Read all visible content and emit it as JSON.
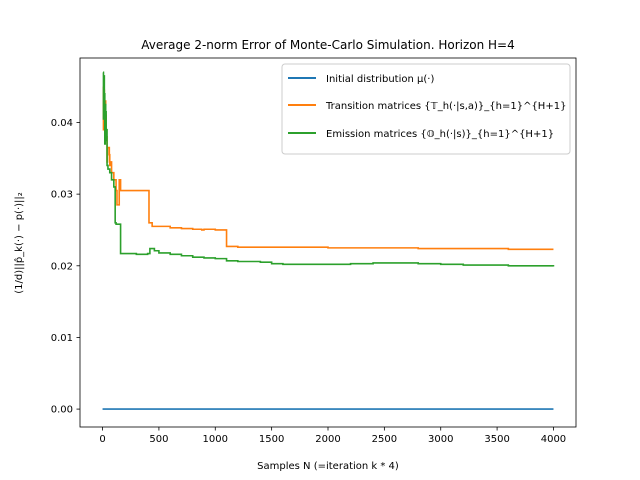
{
  "chart_data": {
    "type": "line",
    "title": "Average 2-norm Error of Monte-Carlo Simulation. Horizon H=4",
    "xlabel": "Samples N (=iteration k * 4)",
    "ylabel": "(1/d)||p̂_k(·) − p(·)||₂",
    "xlim": [
      -200,
      4200
    ],
    "ylim": [
      -0.0025,
      0.049
    ],
    "xticks": [
      0,
      500,
      1000,
      1500,
      2000,
      2500,
      3000,
      3500,
      4000
    ],
    "xtick_labels": [
      "0",
      "500",
      "1000",
      "1500",
      "2000",
      "2500",
      "3000",
      "3500",
      "4000"
    ],
    "yticks": [
      0.0,
      0.01,
      0.02,
      0.03,
      0.04
    ],
    "ytick_labels": [
      "0.00",
      "0.01",
      "0.02",
      "0.03",
      "0.04"
    ],
    "grid": false,
    "legend_position": "top-right",
    "series": [
      {
        "name": "Initial distribution μ(·)",
        "color": "#1f77b4",
        "x": [
          0,
          4000
        ],
        "y": [
          0.0,
          0.0
        ]
      },
      {
        "name": "Transition matrices {𝕋_h(·|s,a)}_{h=1}^{H+1}",
        "color": "#ff7f0e",
        "x": [
          4,
          8,
          12,
          16,
          20,
          24,
          28,
          32,
          36,
          40,
          44,
          52,
          60,
          64,
          72,
          80,
          100,
          120,
          128,
          136,
          148,
          160,
          176,
          200,
          260,
          320,
          400,
          412,
          440,
          500,
          600,
          700,
          800,
          880,
          900,
          1000,
          1080,
          1100,
          1200,
          1400,
          1600,
          1800,
          2000,
          2200,
          2400,
          2600,
          2800,
          3000,
          3200,
          3400,
          3600,
          3800,
          4000
        ],
        "y": [
          0.045,
          0.039,
          0.0445,
          0.042,
          0.0395,
          0.043,
          0.041,
          0.0375,
          0.038,
          0.0345,
          0.0365,
          0.0365,
          0.0355,
          0.034,
          0.0345,
          0.033,
          0.032,
          0.0305,
          0.0285,
          0.0285,
          0.032,
          0.0305,
          0.0305,
          0.0305,
          0.0305,
          0.0305,
          0.0305,
          0.026,
          0.0255,
          0.0255,
          0.0253,
          0.0252,
          0.0251,
          0.025,
          0.0251,
          0.025,
          0.025,
          0.0227,
          0.0226,
          0.0226,
          0.0226,
          0.0226,
          0.0225,
          0.0225,
          0.0225,
          0.0225,
          0.0224,
          0.0224,
          0.0224,
          0.0224,
          0.0223,
          0.0223,
          0.0223
        ]
      },
      {
        "name": "Emission matrices {𝕆_h(·|s)}_{h=1}^{H+1}",
        "color": "#2ca02c",
        "x": [
          4,
          8,
          12,
          16,
          20,
          24,
          28,
          32,
          36,
          40,
          48,
          56,
          64,
          80,
          100,
          112,
          120,
          140,
          160,
          200,
          300,
          400,
          420,
          460,
          500,
          600,
          700,
          800,
          900,
          1000,
          1100,
          1200,
          1300,
          1400,
          1500,
          1600,
          1800,
          2000,
          2200,
          2400,
          2600,
          2800,
          3000,
          3200,
          3400,
          3600,
          3800,
          4000
        ],
        "y": [
          0.047,
          0.0405,
          0.0465,
          0.044,
          0.037,
          0.0425,
          0.0415,
          0.0375,
          0.039,
          0.034,
          0.0335,
          0.0335,
          0.033,
          0.032,
          0.031,
          0.026,
          0.0258,
          0.0258,
          0.0217,
          0.0217,
          0.0216,
          0.0217,
          0.0224,
          0.0221,
          0.0218,
          0.0216,
          0.0214,
          0.0212,
          0.0211,
          0.021,
          0.0207,
          0.0206,
          0.0206,
          0.0205,
          0.0203,
          0.0202,
          0.0202,
          0.0202,
          0.0203,
          0.0204,
          0.0204,
          0.0203,
          0.0202,
          0.0201,
          0.0201,
          0.02,
          0.02,
          0.0199
        ]
      }
    ]
  }
}
